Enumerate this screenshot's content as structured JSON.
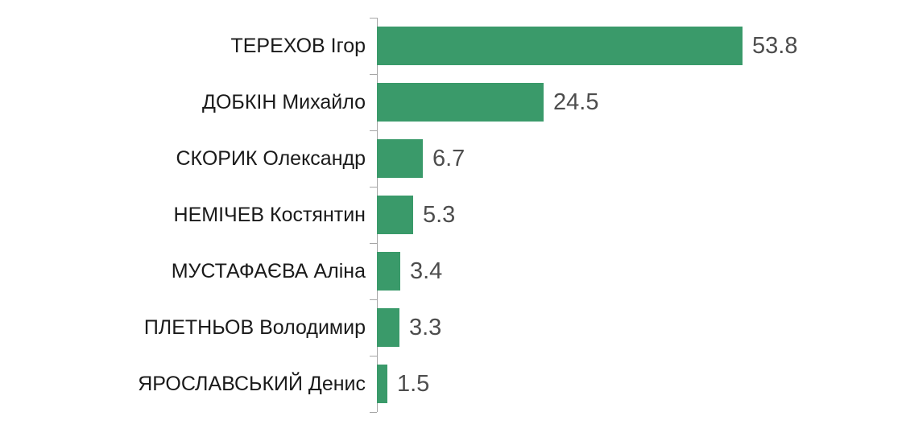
{
  "chart_data": {
    "type": "bar",
    "orientation": "horizontal",
    "title": "",
    "xlabel": "",
    "ylabel": "",
    "categories": [
      "ТЕРЕХОВ Ігор",
      "ДОБКІН Михайло",
      "СКОРИК Олександр",
      "НЕМІЧЕВ Костянтин",
      "МУСТАФАЄВА Аліна",
      "ПЛЕТНЬОВ Володимир",
      "ЯРОСЛАВСЬКИЙ Денис"
    ],
    "values": [
      53.8,
      24.5,
      6.7,
      5.3,
      3.4,
      3.3,
      1.5
    ],
    "value_labels": [
      "53.8",
      "24.5",
      "6.7",
      "5.3",
      "3.4",
      "3.3",
      "1.5"
    ],
    "xlim": [
      0,
      78
    ],
    "grid": false,
    "legend": "none",
    "colors": {
      "bar": "#3a9a6a",
      "axis": "#a6a6a6",
      "category_label": "#1a1a1a",
      "value_label": "#4d4d4d"
    }
  }
}
